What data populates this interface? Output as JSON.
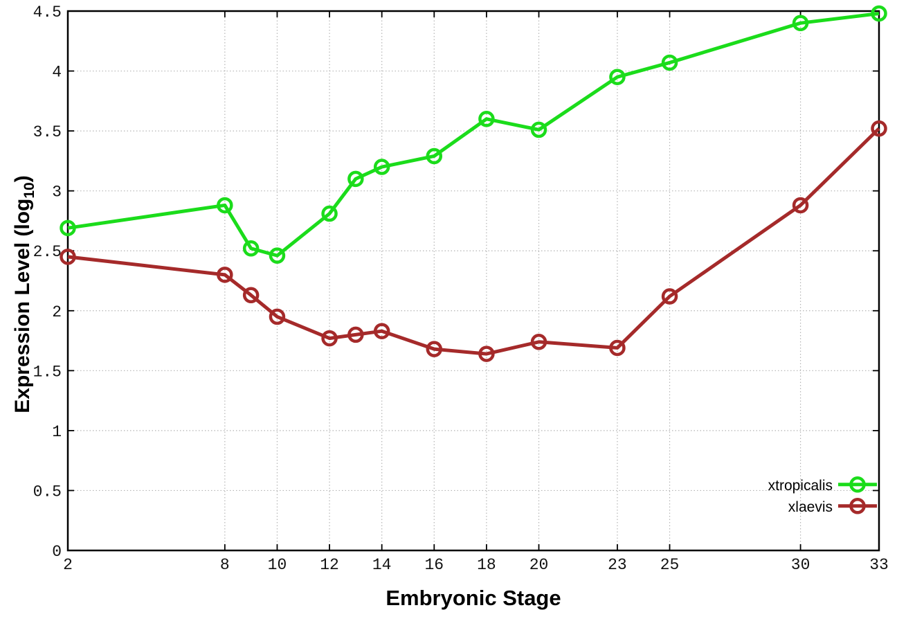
{
  "chart_data": {
    "type": "line",
    "title": "",
    "xlabel": "Embryonic Stage",
    "ylabel": "Expression Level (log10)",
    "ylabel_rich": {
      "pre": "Expression Level (log",
      "sub": "10",
      "post": ")"
    },
    "x": [
      2,
      8,
      9,
      10,
      12,
      13,
      14,
      16,
      18,
      20,
      23,
      25,
      30,
      33
    ],
    "series": [
      {
        "name": "xtropicalis",
        "color": "#1bdc1b",
        "marker": "open-circle",
        "values": [
          2.69,
          2.88,
          2.52,
          2.46,
          2.81,
          3.1,
          3.2,
          3.29,
          3.6,
          3.51,
          3.95,
          4.07,
          4.4,
          4.48
        ]
      },
      {
        "name": "xlaevis",
        "color": "#a52a2a",
        "marker": "open-circle",
        "values": [
          2.45,
          2.3,
          2.13,
          1.95,
          1.77,
          1.8,
          1.83,
          1.68,
          1.64,
          1.74,
          1.69,
          2.12,
          2.88,
          3.52
        ]
      }
    ],
    "x_ticks": [
      2,
      8,
      10,
      12,
      14,
      16,
      18,
      20,
      23,
      25,
      30,
      33
    ],
    "y_ticks": [
      "0",
      "0.5",
      "1",
      "1.5",
      "2",
      "2.5",
      "3",
      "3.5",
      "4",
      "4.5"
    ],
    "xlim": [
      2,
      33
    ],
    "ylim": [
      0,
      4.5
    ],
    "grid": true,
    "legend_position": "bottom-right",
    "colors": {
      "background": "#ffffff",
      "axis": "#000000",
      "gridline": "#b4b4b4",
      "tick_label": "#111111"
    }
  }
}
